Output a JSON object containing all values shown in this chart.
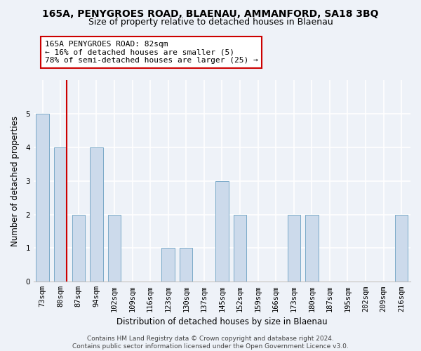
{
  "title": "165A, PENYGROES ROAD, BLAENAU, AMMANFORD, SA18 3BQ",
  "subtitle": "Size of property relative to detached houses in Blaenau",
  "xlabel": "Distribution of detached houses by size in Blaenau",
  "ylabel": "Number of detached properties",
  "bins": [
    "73sqm",
    "80sqm",
    "87sqm",
    "94sqm",
    "102sqm",
    "109sqm",
    "116sqm",
    "123sqm",
    "130sqm",
    "137sqm",
    "145sqm",
    "152sqm",
    "159sqm",
    "166sqm",
    "173sqm",
    "180sqm",
    "187sqm",
    "195sqm",
    "202sqm",
    "209sqm",
    "216sqm"
  ],
  "values": [
    5,
    4,
    2,
    4,
    2,
    0,
    0,
    1,
    1,
    0,
    3,
    2,
    0,
    0,
    2,
    2,
    0,
    0,
    0,
    0,
    2
  ],
  "bar_color": "#ccdaeb",
  "bar_edge_color": "#7aaac8",
  "highlight_bin_index": 1,
  "highlight_line_color": "#cc0000",
  "annotation_text": "165A PENYGROES ROAD: 82sqm\n← 16% of detached houses are smaller (5)\n78% of semi-detached houses are larger (25) →",
  "annotation_box_color": "#ffffff",
  "annotation_box_edge": "#cc0000",
  "ylim": [
    0,
    6
  ],
  "yticks": [
    0,
    1,
    2,
    3,
    4,
    5,
    6
  ],
  "footer_text": "Contains HM Land Registry data © Crown copyright and database right 2024.\nContains public sector information licensed under the Open Government Licence v3.0.",
  "background_color": "#eef2f8",
  "grid_color": "#ffffff",
  "bar_width": 0.72,
  "title_fontsize": 10,
  "subtitle_fontsize": 9,
  "label_fontsize": 8.5,
  "tick_fontsize": 7.5,
  "annotation_fontsize": 8,
  "footer_fontsize": 6.5
}
